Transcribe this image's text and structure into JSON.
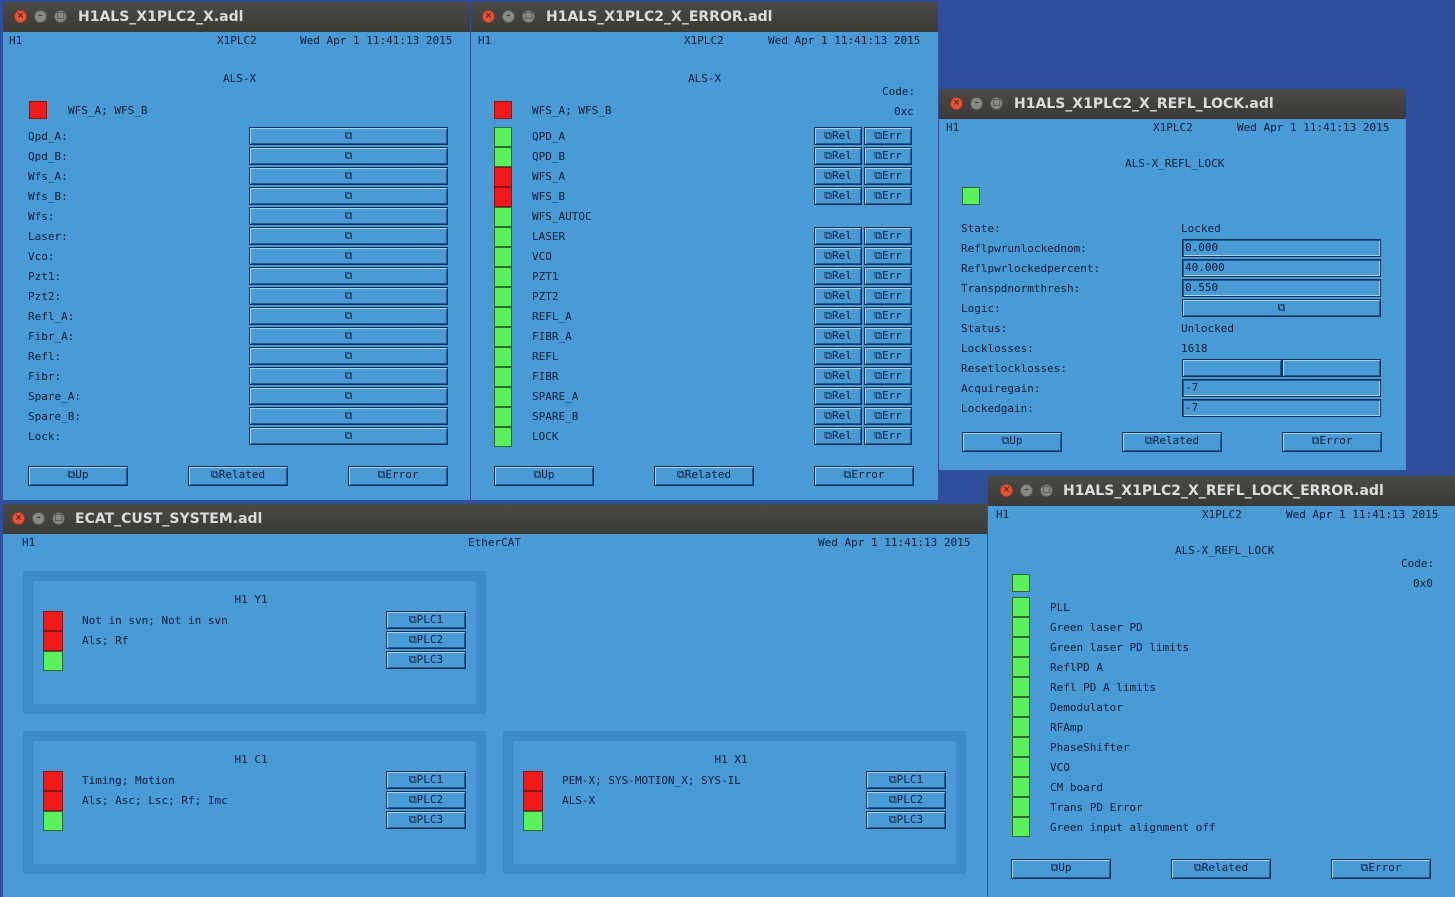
{
  "common": {
    "site": "H1",
    "date": "Wed Apr  1 11:41:13 2015",
    "nav": {
      "up": "Up",
      "related": "Related",
      "error": "Error"
    },
    "rel": "Rel",
    "err": "Err"
  },
  "w1": {
    "title": "H1ALS_X1PLC2_X.adl",
    "system": "X1PLC2",
    "heading": "ALS-X",
    "wfs_label": "WFS_A; WFS_B",
    "rows": [
      "Qpd_A:",
      "Qpd_B:",
      "Wfs_A:",
      "Wfs_B:",
      "Wfs:",
      "Laser:",
      "Vco:",
      "Pzt1:",
      "Pzt2:",
      "Refl_A:",
      "Fibr_A:",
      "Refl:",
      "Fibr:",
      "Spare_A:",
      "Spare_B:",
      "Lock:"
    ]
  },
  "w2": {
    "title": "H1ALS_X1PLC2_X_ERROR.adl",
    "system": "X1PLC2",
    "heading": "ALS-X",
    "code_label": "Code:",
    "code_value": "0xc",
    "wfs_label": "WFS_A; WFS_B",
    "rows": [
      {
        "label": "QPD_A",
        "status": "ok",
        "buttons": true
      },
      {
        "label": "QPD_B",
        "status": "ok",
        "buttons": true
      },
      {
        "label": "WFS_A",
        "status": "error",
        "buttons": true
      },
      {
        "label": "WFS_B",
        "status": "error",
        "buttons": true
      },
      {
        "label": "WFS_AUTOC",
        "status": "ok",
        "buttons": false
      },
      {
        "label": "LASER",
        "status": "ok",
        "buttons": true
      },
      {
        "label": "VCO",
        "status": "ok",
        "buttons": true
      },
      {
        "label": "PZT1",
        "status": "ok",
        "buttons": true
      },
      {
        "label": "PZT2",
        "status": "ok",
        "buttons": true
      },
      {
        "label": "REFL_A",
        "status": "ok",
        "buttons": true
      },
      {
        "label": "FIBR_A",
        "status": "ok",
        "buttons": true
      },
      {
        "label": "REFL",
        "status": "ok",
        "buttons": true
      },
      {
        "label": "FIBR",
        "status": "ok",
        "buttons": true
      },
      {
        "label": "SPARE_A",
        "status": "ok",
        "buttons": true
      },
      {
        "label": "SPARE_B",
        "status": "ok",
        "buttons": true
      },
      {
        "label": "LOCK",
        "status": "ok",
        "buttons": true
      }
    ]
  },
  "w3": {
    "title": "H1ALS_X1PLC2_X_REFL_LOCK.adl",
    "system": "X1PLC2",
    "heading": "ALS-X_REFL_LOCK",
    "fields": [
      {
        "label": "State:",
        "value": "Locked",
        "kind": "text"
      },
      {
        "label": "Reflpwrunlockednom:",
        "value": "0.000",
        "kind": "input"
      },
      {
        "label": "Reflpwrlockedpercent:",
        "value": "40.000",
        "kind": "input"
      },
      {
        "label": "Transpdnormthresh:",
        "value": "0.550",
        "kind": "input"
      },
      {
        "label": "Logic:",
        "value": "",
        "kind": "button"
      },
      {
        "label": "Status:",
        "value": "Unlocked",
        "kind": "text"
      },
      {
        "label": "Locklosses:",
        "value": "1618",
        "kind": "text"
      },
      {
        "label": "Resetlocklosses:",
        "value": "",
        "kind": "split"
      },
      {
        "label": "Acquiregain:",
        "value": "-7",
        "kind": "input"
      },
      {
        "label": "Lockedgain:",
        "value": "-7",
        "kind": "input"
      }
    ]
  },
  "w4": {
    "title": "ECAT_CUST_SYSTEM.adl",
    "system": "EtherCAT",
    "groups": [
      {
        "name": "H1 Y1",
        "lines": [
          "Not in svn; Not in svn",
          "Als; Rf"
        ],
        "buttons": [
          "PLC1",
          "PLC2",
          "PLC3"
        ],
        "leds": [
          "error",
          "error",
          "ok"
        ]
      },
      {
        "name": "H1 C1",
        "lines": [
          "Timing; Motion",
          "Als; Asc; Lsc; Rf; Imc"
        ],
        "buttons": [
          "PLC1",
          "PLC2",
          "PLC3"
        ],
        "leds": [
          "error",
          "error",
          "ok"
        ]
      },
      {
        "name": "H1 X1",
        "lines": [
          "PEM-X; SYS-MOTION_X; SYS-IL",
          "ALS-X"
        ],
        "buttons": [
          "PLC1",
          "PLC2",
          "PLC3"
        ],
        "leds": [
          "error",
          "error",
          "ok"
        ]
      }
    ]
  },
  "w5": {
    "title": "H1ALS_X1PLC2_X_REFL_LOCK_ERROR.adl",
    "system": "X1PLC2",
    "heading": "ALS-X_REFL_LOCK",
    "code_label": "Code:",
    "code_value": "0x0",
    "rows": [
      "PLL",
      "Green laser PD",
      "Green laser PD limits",
      "ReflPD A",
      "Refl PD A limits",
      "Demodulator",
      "RFAmp",
      "PhaseShifter",
      "VCO",
      "CM board",
      "Trans PD Error",
      "Green input alignment off"
    ]
  },
  "colors": {
    "ok": "#5cf05c",
    "error": "#f01a1a",
    "panel": "#4a9ad6",
    "desktop": "#2f4f9c"
  }
}
